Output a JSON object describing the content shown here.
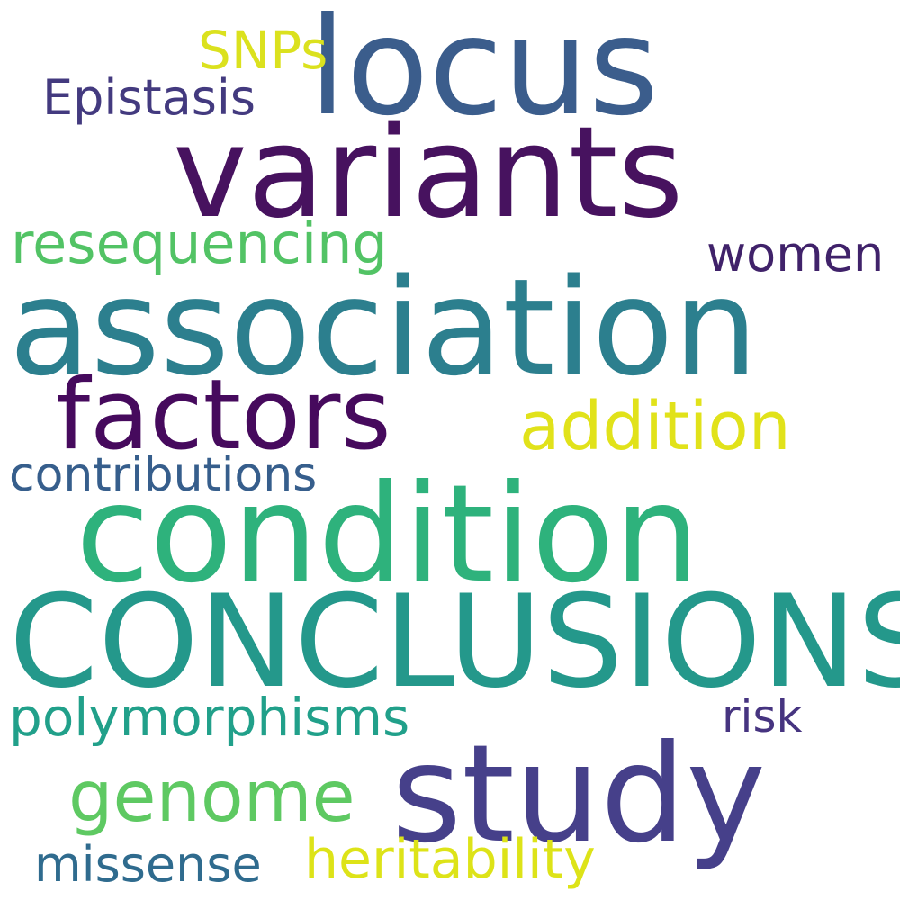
{
  "words": {
    "locus": {
      "text": "locus",
      "color": "#3b5d8c"
    },
    "variants": {
      "text": "variants",
      "color": "#47125f"
    },
    "snps": {
      "text": "SNPs",
      "color": "#dbe11e"
    },
    "epistasis": {
      "text": "Epistasis",
      "color": "#433a7f"
    },
    "resequencing": {
      "text": "resequencing",
      "color": "#52c365"
    },
    "women": {
      "text": "women",
      "color": "#40226a"
    },
    "association": {
      "text": "association",
      "color": "#2c7f8e"
    },
    "factors": {
      "text": "factors",
      "color": "#460a5d"
    },
    "addition": {
      "text": "addition",
      "color": "#e1e21a"
    },
    "contributions": {
      "text": "contributions",
      "color": "#365e8c"
    },
    "condition": {
      "text": "condition",
      "color": "#2eb27c"
    },
    "conclusions": {
      "text": "CONCLUSIONS",
      "color": "#24988b"
    },
    "polymorphisms": {
      "text": "polymorphisms",
      "color": "#21a08a"
    },
    "risk": {
      "text": "risk",
      "color": "#463480"
    },
    "genome": {
      "text": "genome",
      "color": "#5ec962"
    },
    "study": {
      "text": "study",
      "color": "#46408a"
    },
    "heritability": {
      "text": "heritability",
      "color": "#dde318"
    },
    "missense": {
      "text": "missense",
      "color": "#2f6b8e"
    }
  },
  "background_color": "#ffffff"
}
